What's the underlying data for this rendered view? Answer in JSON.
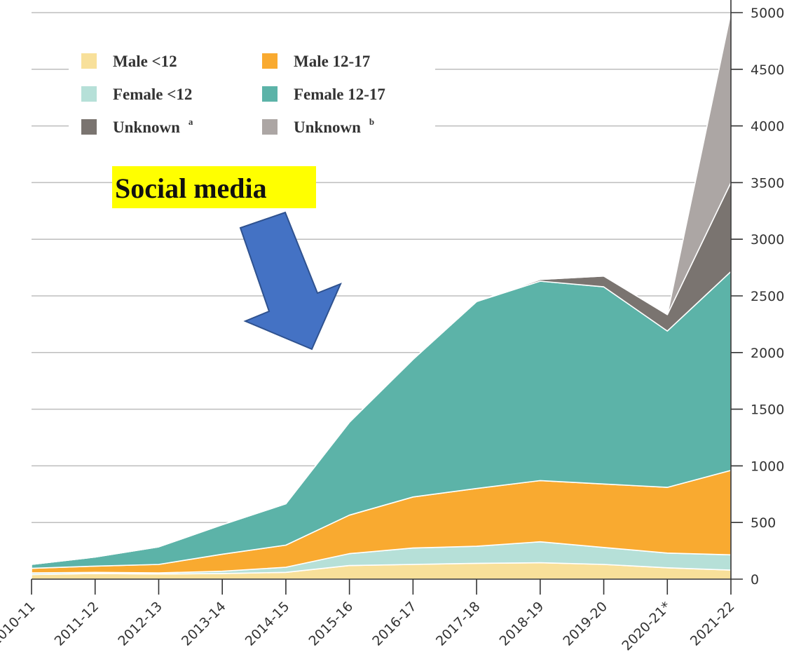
{
  "chart_data": {
    "type": "area",
    "stacked": true,
    "categories": [
      "2010-11",
      "2011-12",
      "2012-13",
      "2013-14",
      "2014-15",
      "2015-16",
      "2016-17",
      "2017-18",
      "2018-19",
      "2019-20",
      "2020-21*",
      "2021-22"
    ],
    "y_axis_side": "right",
    "ylim": [
      0,
      5000
    ],
    "yticks": [
      0,
      500,
      1000,
      1500,
      2000,
      2500,
      3000,
      3500,
      4000,
      4500,
      5000
    ],
    "grid": true,
    "legend_placement": "top-left",
    "series": [
      {
        "name": "Male <12",
        "color": "#f8e09a",
        "values": [
          40,
          50,
          45,
          50,
          60,
          120,
          130,
          140,
          145,
          130,
          100,
          80
        ]
      },
      {
        "name": "Female <12",
        "color": "#b6e0d8",
        "values": [
          15,
          10,
          10,
          20,
          45,
          105,
          145,
          150,
          185,
          150,
          130,
          135
        ]
      },
      {
        "name": "Male 12-17",
        "color": "#f9aa30",
        "values": [
          40,
          55,
          75,
          150,
          195,
          340,
          450,
          510,
          540,
          560,
          580,
          745
        ]
      },
      {
        "name": "Female 12-17",
        "color": "#5cb3a8",
        "values": [
          35,
          80,
          155,
          260,
          365,
          820,
          1215,
          1650,
          1760,
          1740,
          1380,
          1755
        ]
      },
      {
        "name": "Unknown",
        "sup": "a",
        "color": "#7a7470",
        "values": [
          0,
          0,
          0,
          0,
          0,
          0,
          0,
          0,
          15,
          95,
          145,
          785
        ]
      },
      {
        "name": "Unknown",
        "sup": "b",
        "color": "#aca6a4",
        "values": [
          0,
          0,
          0,
          0,
          0,
          0,
          0,
          0,
          0,
          0,
          0,
          1500
        ]
      }
    ],
    "annotation": {
      "text": "Social media",
      "highlight_color": "#ffff00",
      "arrow_color": "#4472c4",
      "points_to": "2014-15"
    }
  }
}
